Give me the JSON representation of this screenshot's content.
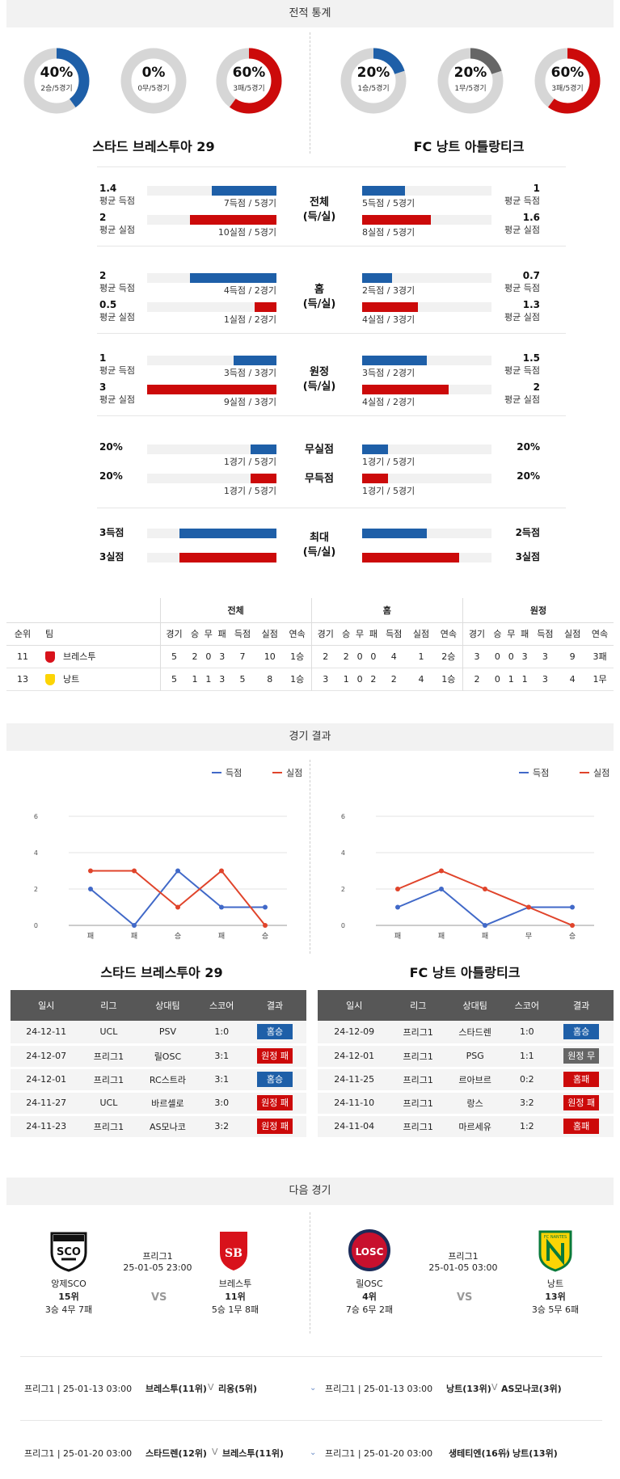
{
  "sections": {
    "record": "전적 통계",
    "results": "경기 결과",
    "next": "다음 경기"
  },
  "donuts": [
    {
      "pct": "40%",
      "sub": "2승/5경기",
      "value": 0.4,
      "color": "#1e5fa8"
    },
    {
      "pct": "0%",
      "sub": "0무/5경기",
      "value": 0,
      "color": "#666666"
    },
    {
      "pct": "60%",
      "sub": "3패/5경기",
      "value": 0.6,
      "color": "#cc0a0a"
    },
    {
      "pct": "20%",
      "sub": "1승/5경기",
      "value": 0.2,
      "color": "#1e5fa8"
    },
    {
      "pct": "20%",
      "sub": "1무/5경기",
      "value": 0.2,
      "color": "#666666"
    },
    {
      "pct": "60%",
      "sub": "3패/5경기",
      "value": 0.6,
      "color": "#cc0a0a"
    }
  ],
  "teams": {
    "home": "스타드 브레스투아 29",
    "away": "FC 낭트 아틀랑티크"
  },
  "stat_groups": [
    {
      "center": "전체\n(득/실)",
      "rows": [
        {
          "lv": "1.4",
          "ll": "평균 득점",
          "lcap": "7득점 / 5경기",
          "lfrac": 0.5,
          "rv": "1",
          "rl": "평균 득점",
          "rcap": "5득점 / 5경기",
          "rfrac": 0.33,
          "color": "blue"
        },
        {
          "lv": "2",
          "ll": "평균 실점",
          "lcap": "10실점 / 5경기",
          "lfrac": 0.67,
          "rv": "1.6",
          "rl": "평균 실점",
          "rcap": "8실점 / 5경기",
          "rfrac": 0.53,
          "color": "red"
        }
      ]
    },
    {
      "center": "홈\n(득/실)",
      "rows": [
        {
          "lv": "2",
          "ll": "평균 득점",
          "lcap": "4득점 / 2경기",
          "lfrac": 0.67,
          "rv": "0.7",
          "rl": "평균 득점",
          "rcap": "2득점 / 3경기",
          "rfrac": 0.23,
          "color": "blue"
        },
        {
          "lv": "0.5",
          "ll": "평균 실점",
          "lcap": "1실점 / 2경기",
          "lfrac": 0.17,
          "rv": "1.3",
          "rl": "평균 실점",
          "rcap": "4실점 / 3경기",
          "rfrac": 0.43,
          "color": "red"
        }
      ]
    },
    {
      "center": "원정\n(득/실)",
      "rows": [
        {
          "lv": "1",
          "ll": "평균 득점",
          "lcap": "3득점 / 3경기",
          "lfrac": 0.33,
          "rv": "1.5",
          "rl": "평균 득점",
          "rcap": "3득점 / 2경기",
          "rfrac": 0.5,
          "color": "blue"
        },
        {
          "lv": "3",
          "ll": "평균 실점",
          "lcap": "9실점 / 3경기",
          "lfrac": 1.0,
          "rv": "2",
          "rl": "평균 실점",
          "rcap": "4실점 / 2경기",
          "rfrac": 0.67,
          "color": "red"
        }
      ]
    }
  ],
  "clean": [
    {
      "lv": "20%",
      "center": "무실점",
      "lcap": "1경기 / 5경기",
      "lfrac": 0.2,
      "rv": "20%",
      "rcap": "1경기 / 5경기",
      "rfrac": 0.2,
      "color": "blue"
    },
    {
      "lv": "20%",
      "center": "무득점",
      "lcap": "1경기 / 5경기",
      "lfrac": 0.2,
      "rv": "20%",
      "rcap": "1경기 / 5경기",
      "rfrac": 0.2,
      "color": "red"
    }
  ],
  "max": {
    "center": "최대\n(득/실)",
    "rows": [
      {
        "lv": "3득점",
        "lfrac": 0.75,
        "rv": "2득점",
        "rfrac": 0.5,
        "color": "blue"
      },
      {
        "lv": "3실점",
        "lfrac": 0.75,
        "rv": "3실점",
        "rfrac": 0.75,
        "color": "red"
      }
    ]
  },
  "standings": {
    "groups": [
      "전체",
      "홈",
      "원정"
    ],
    "head": [
      "순위",
      "팀"
    ],
    "cols": [
      "경기",
      "승",
      "무",
      "패",
      "득점",
      "실점",
      "연속"
    ],
    "rows": [
      {
        "rank": "11",
        "team": "브레스투",
        "all": [
          "5",
          "2",
          "0",
          "3",
          "7",
          "10",
          "1승"
        ],
        "home": [
          "2",
          "2",
          "0",
          "0",
          "4",
          "1",
          "2승"
        ],
        "away": [
          "3",
          "0",
          "0",
          "3",
          "3",
          "9",
          "3패"
        ]
      },
      {
        "rank": "13",
        "team": "낭트",
        "all": [
          "5",
          "1",
          "1",
          "3",
          "5",
          "8",
          "1승"
        ],
        "home": [
          "3",
          "1",
          "0",
          "2",
          "2",
          "4",
          "1승"
        ],
        "away": [
          "2",
          "0",
          "1",
          "1",
          "3",
          "4",
          "1무"
        ]
      }
    ]
  },
  "chart_data": [
    {
      "type": "line",
      "categories": [
        "패",
        "패",
        "승",
        "패",
        "승"
      ],
      "ylim": [
        0,
        6
      ],
      "yticks": [
        0,
        2,
        4,
        6
      ],
      "series": [
        {
          "name": "득점",
          "values": [
            2,
            0,
            3,
            1,
            1
          ],
          "color": "#4169c8"
        },
        {
          "name": "실점",
          "values": [
            3,
            3,
            1,
            3,
            0
          ],
          "color": "#e0442b"
        }
      ]
    },
    {
      "type": "line",
      "categories": [
        "패",
        "패",
        "패",
        "무",
        "승"
      ],
      "ylim": [
        0,
        6
      ],
      "yticks": [
        0,
        2,
        4,
        6
      ],
      "series": [
        {
          "name": "득점",
          "values": [
            1,
            2,
            0,
            1,
            1
          ],
          "color": "#4169c8"
        },
        {
          "name": "실점",
          "values": [
            2,
            3,
            2,
            1,
            0
          ],
          "color": "#e0442b"
        }
      ]
    }
  ],
  "results": {
    "head": [
      "일시",
      "리그",
      "상대팀",
      "스코어",
      "결과"
    ],
    "home": [
      [
        "24-12-11",
        "UCL",
        "PSV",
        "1:0",
        "홈승",
        "blue"
      ],
      [
        "24-12-07",
        "프리그1",
        "릴OSC",
        "3:1",
        "원정 패",
        "red"
      ],
      [
        "24-12-01",
        "프리그1",
        "RC스트라",
        "3:1",
        "홈승",
        "blue"
      ],
      [
        "24-11-27",
        "UCL",
        "바르셀로",
        "3:0",
        "원정 패",
        "red"
      ],
      [
        "24-11-23",
        "프리그1",
        "AS모나코",
        "3:2",
        "원정 패",
        "red"
      ]
    ],
    "away": [
      [
        "24-12-09",
        "프리그1",
        "스타드렌",
        "1:0",
        "홈승",
        "blue"
      ],
      [
        "24-12-01",
        "프리그1",
        "PSG",
        "1:1",
        "원정 무",
        "gray"
      ],
      [
        "24-11-25",
        "프리그1",
        "르아브르",
        "0:2",
        "홈패",
        "red"
      ],
      [
        "24-11-10",
        "프리그1",
        "랑스",
        "3:2",
        "원정 패",
        "red"
      ],
      [
        "24-11-04",
        "프리그1",
        "마르세유",
        "1:2",
        "홈패",
        "red"
      ]
    ]
  },
  "next_match": [
    {
      "league": "프리그1",
      "date": "25-01-05 23:00",
      "vs": "VS",
      "t1": {
        "name": "앙제SCO",
        "rank": "15위",
        "rec": "3승 4무 7패",
        "logo": "SCO"
      },
      "t2": {
        "name": "브레스투",
        "rank": "11위",
        "rec": "5승 1무 8패",
        "logo": "SB"
      }
    },
    {
      "league": "프리그1",
      "date": "25-01-05 03:00",
      "vs": "VS",
      "t1": {
        "name": "릴OSC",
        "rank": "4위",
        "rec": "7승 6무 2패",
        "logo": "LOSC"
      },
      "t2": {
        "name": "낭트",
        "rank": "13위",
        "rec": "3승 5무 6패",
        "logo": "FC NANTES"
      }
    }
  ],
  "upcoming": [
    {
      "left": "프리그1 | 25-01-13 03:00",
      "l1": "브레스투(11위)",
      "lv": "V",
      "l2": "리옹(5위)",
      "right": "프리그1 | 25-01-13 03:00",
      "r1": "낭트(13위)",
      "rv": "V",
      "r2": "AS모나코(3위)"
    },
    {
      "left": "프리그1 | 25-01-20 03:00",
      "l1": "스타드렌(12위)",
      "lv": "V",
      "l2": "브레스투(11위)",
      "right": "프리그1 | 25-01-20 03:00",
      "r1": "생테티엔(16위)",
      "rv": "V",
      "r2": "낭트(13위)"
    }
  ]
}
